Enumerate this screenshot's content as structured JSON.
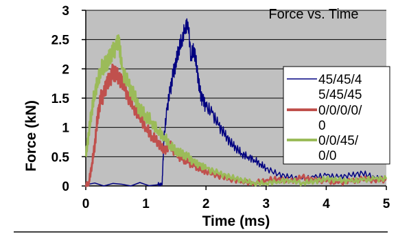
{
  "chart_data": {
    "type": "line",
    "title": "Force vs. Time",
    "xlabel": "Time (ms)",
    "ylabel": "Force (kN)",
    "xlim": [
      0,
      5
    ],
    "ylim": [
      0,
      3
    ],
    "x_ticks": [
      "0",
      "1",
      "2",
      "3",
      "4",
      "5"
    ],
    "y_ticks": [
      "0",
      "0.5",
      "1",
      "1.5",
      "2",
      "2.5",
      "3"
    ],
    "grid": "horizontal",
    "legend_position": "right",
    "plot_background": "#c0c0c0",
    "series": [
      {
        "name": "45/45/45/45/45",
        "legend_lines": [
          "45/45/4",
          "5/45/45"
        ],
        "color": "#000080",
        "x": [
          0,
          1.2,
          1.27,
          1.3,
          1.35,
          1.4,
          1.45,
          1.5,
          1.55,
          1.6,
          1.65,
          1.7,
          1.75,
          1.8,
          1.85,
          1.9,
          1.95,
          2.0,
          2.1,
          2.2,
          2.3,
          2.4,
          2.5,
          2.6,
          2.7,
          2.8,
          2.9,
          3.0,
          3.2,
          3.4,
          3.6,
          3.8,
          4.0,
          4.2,
          4.4,
          4.6,
          4.8,
          5.0
        ],
        "y": [
          0.02,
          0.02,
          0.02,
          0.8,
          1.3,
          1.6,
          1.9,
          2.1,
          2.35,
          2.5,
          2.7,
          2.8,
          2.2,
          2.35,
          2.0,
          1.6,
          1.45,
          1.35,
          1.25,
          1.05,
          0.9,
          0.75,
          0.65,
          0.55,
          0.5,
          0.45,
          0.38,
          0.3,
          0.2,
          0.15,
          0.12,
          0.15,
          0.18,
          0.15,
          0.18,
          0.22,
          0.15,
          0.1
        ]
      },
      {
        "name": "0/0/0/0/0",
        "legend_lines": [
          "0/0/0/0/",
          "0"
        ],
        "color": "#c0504d",
        "x": [
          0,
          0.05,
          0.1,
          0.15,
          0.2,
          0.25,
          0.3,
          0.35,
          0.4,
          0.45,
          0.5,
          0.6,
          0.7,
          0.8,
          0.9,
          1.0,
          1.1,
          1.2,
          1.3,
          1.4,
          1.5,
          1.6,
          1.7,
          1.8,
          1.9,
          2.0,
          2.2,
          2.4,
          2.6,
          2.8,
          3.0,
          3.2,
          3.4,
          3.6,
          3.8,
          4.0,
          4.2,
          4.4,
          4.6,
          4.8,
          5.0
        ],
        "y": [
          0.02,
          0.05,
          0.35,
          0.7,
          1.2,
          1.5,
          1.55,
          1.75,
          1.8,
          1.95,
          1.9,
          1.8,
          1.55,
          1.35,
          1.2,
          1.0,
          0.85,
          0.75,
          0.6,
          0.7,
          0.55,
          0.45,
          0.4,
          0.35,
          0.3,
          0.25,
          0.18,
          0.12,
          0.08,
          0.05,
          0.1,
          0.12,
          0.08,
          0.15,
          0.1,
          0.08,
          0.05,
          0.08,
          0.12,
          0.1,
          0.1
        ]
      },
      {
        "name": "0/0/45/0/0",
        "legend_lines": [
          "0/0/45/",
          "0/0"
        ],
        "color": "#9bbb59",
        "x": [
          0,
          0.05,
          0.1,
          0.15,
          0.2,
          0.25,
          0.3,
          0.35,
          0.4,
          0.45,
          0.5,
          0.55,
          0.6,
          0.7,
          0.8,
          0.9,
          1.0,
          1.1,
          1.2,
          1.3,
          1.4,
          1.5,
          1.6,
          1.7,
          1.8,
          1.9,
          2.0,
          2.2,
          2.4,
          2.6,
          2.8,
          3.0,
          3.2,
          3.4,
          3.6,
          3.8,
          4.0,
          4.2,
          4.4,
          4.6,
          4.8,
          5.0
        ],
        "y": [
          0.5,
          0.9,
          1.3,
          1.6,
          1.8,
          2.0,
          2.05,
          2.1,
          2.2,
          2.3,
          2.35,
          2.5,
          2.0,
          1.75,
          1.55,
          1.3,
          1.2,
          1.1,
          0.95,
          0.85,
          0.7,
          0.6,
          0.55,
          0.5,
          0.4,
          0.35,
          0.3,
          0.22,
          0.15,
          0.1,
          0.05,
          0.05,
          0.08,
          0.1,
          0.05,
          0.08,
          0.12,
          0.1,
          0.08,
          0.1,
          0.12,
          0.12
        ]
      }
    ]
  }
}
